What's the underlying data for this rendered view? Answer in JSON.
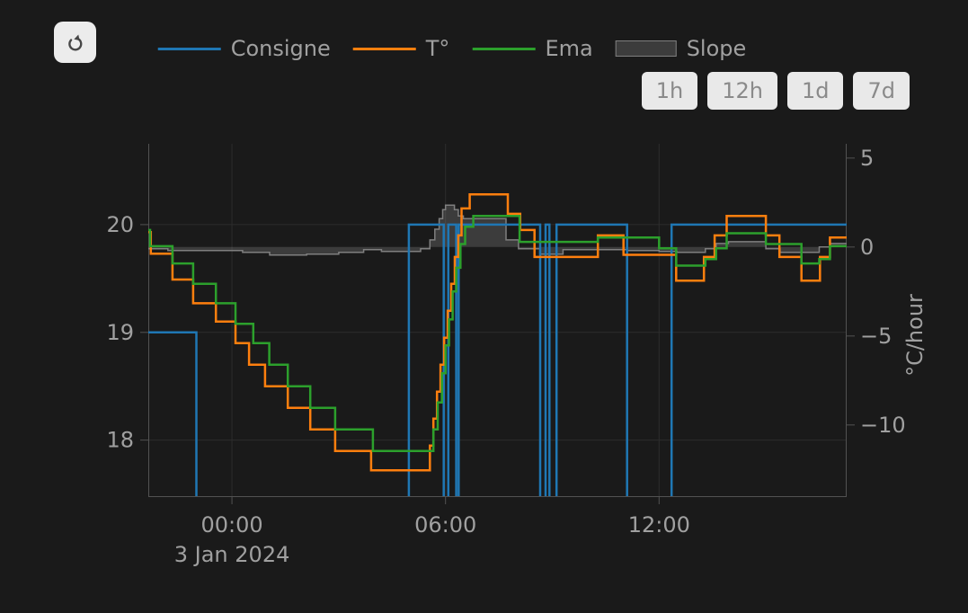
{
  "toolbar": {
    "refresh_icon": "refresh-arrow"
  },
  "legend": {
    "items": [
      {
        "label": "Consigne",
        "type": "line",
        "color": "#1f77b4"
      },
      {
        "label": "T°",
        "type": "line",
        "color": "#ff7f0e"
      },
      {
        "label": "Ema",
        "type": "line",
        "color": "#2ca02c"
      },
      {
        "label": "Slope",
        "type": "area",
        "fill": "rgba(127,127,127,0.35)",
        "border": "#7f7f7f"
      }
    ]
  },
  "range_buttons": [
    {
      "label": "1h"
    },
    {
      "label": "12h"
    },
    {
      "label": "1d"
    },
    {
      "label": "7d"
    }
  ],
  "chart_data": {
    "type": "line",
    "title": "",
    "x_unit": "hours relative to 3 Jan 2024 00:00",
    "x_range": [
      -2.35,
      17.27
    ],
    "x_ticks": [
      {
        "value": 0,
        "label": "00:00"
      },
      {
        "value": 6,
        "label": "06:00"
      },
      {
        "value": 12,
        "label": "12:00"
      }
    ],
    "x_date_label": "3 Jan 2024",
    "y_left": {
      "range": [
        17.48,
        20.75
      ],
      "ticks": [
        18,
        19,
        20
      ]
    },
    "y_right": {
      "range": [
        -14.0,
        5.8
      ],
      "ticks": [
        5,
        0,
        -5,
        -10
      ],
      "title": "°C/hour"
    },
    "grid": {
      "show": true
    },
    "legend_position": "top-center",
    "style": {
      "grid": "#2d2d2d",
      "axis": "#525252",
      "tick_color": "#a0a0a0",
      "tick_font_size": 24,
      "line_width": 2.5
    },
    "series": [
      {
        "id": "slope",
        "name": "Slope",
        "axis": "right",
        "render": "area",
        "step": true,
        "fill": "rgba(127,127,127,0.35)",
        "color": "#7f7f7f",
        "points": [
          [
            -2.35,
            -0.1
          ],
          [
            -1.8,
            -0.2
          ],
          [
            0.3,
            -0.3
          ],
          [
            1.06,
            -0.45
          ],
          [
            2.1,
            -0.4
          ],
          [
            3.0,
            -0.3
          ],
          [
            3.7,
            -0.15
          ],
          [
            4.2,
            -0.25
          ],
          [
            5.3,
            -0.1
          ],
          [
            5.56,
            0.4
          ],
          [
            5.7,
            1.0
          ],
          [
            5.82,
            1.6
          ],
          [
            5.92,
            2.1
          ],
          [
            6.0,
            2.35
          ],
          [
            6.25,
            2.1
          ],
          [
            6.36,
            1.75
          ],
          [
            6.5,
            1.6
          ],
          [
            7.7,
            0.4
          ],
          [
            8.05,
            -0.1
          ],
          [
            8.65,
            -0.4
          ],
          [
            9.3,
            -0.15
          ],
          [
            11.1,
            -0.2
          ],
          [
            12.0,
            -0.25
          ],
          [
            12.5,
            -0.3
          ],
          [
            13.3,
            -0.1
          ],
          [
            13.6,
            0.2
          ],
          [
            13.95,
            0.3
          ],
          [
            15.0,
            -0.1
          ],
          [
            15.4,
            -0.3
          ],
          [
            16.5,
            0.0
          ],
          [
            16.8,
            0.2
          ]
        ]
      },
      {
        "id": "consigne",
        "name": "Consigne",
        "axis": "left",
        "render": "line",
        "step": true,
        "color": "#1f77b4",
        "points": [
          [
            -2.35,
            19
          ],
          [
            -1.0,
            17.0
          ],
          [
            4.97,
            20
          ],
          [
            5.95,
            17.0
          ],
          [
            6.08,
            20
          ],
          [
            6.3,
            17.0
          ],
          [
            6.37,
            20
          ],
          [
            8.66,
            17.0
          ],
          [
            8.81,
            20
          ],
          [
            8.92,
            17.0
          ],
          [
            9.12,
            20
          ],
          [
            11.1,
            17.0
          ],
          [
            12.35,
            20
          ]
        ]
      },
      {
        "id": "temperature",
        "name": "T°",
        "axis": "left",
        "render": "line",
        "step": true,
        "color": "#ff7f0e",
        "points": [
          [
            -2.35,
            19.93
          ],
          [
            -2.28,
            19.73
          ],
          [
            -1.67,
            19.49
          ],
          [
            -1.09,
            19.27
          ],
          [
            -0.45,
            19.1
          ],
          [
            0.1,
            18.9
          ],
          [
            0.48,
            18.7
          ],
          [
            0.93,
            18.5
          ],
          [
            1.57,
            18.3
          ],
          [
            2.2,
            18.1
          ],
          [
            2.9,
            17.9
          ],
          [
            3.91,
            17.72
          ],
          [
            5.56,
            17.95
          ],
          [
            5.66,
            18.2
          ],
          [
            5.76,
            18.45
          ],
          [
            5.86,
            18.7
          ],
          [
            5.96,
            18.95
          ],
          [
            6.06,
            19.2
          ],
          [
            6.16,
            19.45
          ],
          [
            6.26,
            19.7
          ],
          [
            6.36,
            19.9
          ],
          [
            6.45,
            20.15
          ],
          [
            6.68,
            20.28
          ],
          [
            7.75,
            20.1
          ],
          [
            8.1,
            19.95
          ],
          [
            8.5,
            19.7
          ],
          [
            10.28,
            19.9
          ],
          [
            11.0,
            19.72
          ],
          [
            12.48,
            19.48
          ],
          [
            13.26,
            19.7
          ],
          [
            13.56,
            19.9
          ],
          [
            13.9,
            20.08
          ],
          [
            15.0,
            19.9
          ],
          [
            15.38,
            19.7
          ],
          [
            16.0,
            19.48
          ],
          [
            16.52,
            19.7
          ],
          [
            16.8,
            19.88
          ]
        ]
      },
      {
        "id": "ema",
        "name": "Ema",
        "axis": "left",
        "render": "line",
        "step": true,
        "color": "#2ca02c",
        "points": [
          [
            -2.35,
            19.95
          ],
          [
            -2.3,
            19.8
          ],
          [
            -1.67,
            19.64
          ],
          [
            -1.09,
            19.45
          ],
          [
            -0.45,
            19.27
          ],
          [
            0.1,
            19.08
          ],
          [
            0.6,
            18.9
          ],
          [
            1.05,
            18.7
          ],
          [
            1.57,
            18.5
          ],
          [
            2.2,
            18.3
          ],
          [
            2.9,
            18.1
          ],
          [
            3.96,
            17.9
          ],
          [
            5.66,
            18.1
          ],
          [
            5.78,
            18.35
          ],
          [
            5.9,
            18.62
          ],
          [
            6.0,
            18.88
          ],
          [
            6.1,
            19.12
          ],
          [
            6.2,
            19.38
          ],
          [
            6.3,
            19.6
          ],
          [
            6.42,
            19.82
          ],
          [
            6.55,
            19.98
          ],
          [
            6.78,
            20.08
          ],
          [
            8.08,
            19.84
          ],
          [
            10.28,
            19.88
          ],
          [
            12.0,
            19.78
          ],
          [
            12.48,
            19.62
          ],
          [
            13.3,
            19.68
          ],
          [
            13.6,
            19.78
          ],
          [
            13.9,
            19.92
          ],
          [
            15.0,
            19.82
          ],
          [
            16.0,
            19.64
          ],
          [
            16.5,
            19.68
          ],
          [
            16.8,
            19.8
          ]
        ]
      }
    ]
  }
}
